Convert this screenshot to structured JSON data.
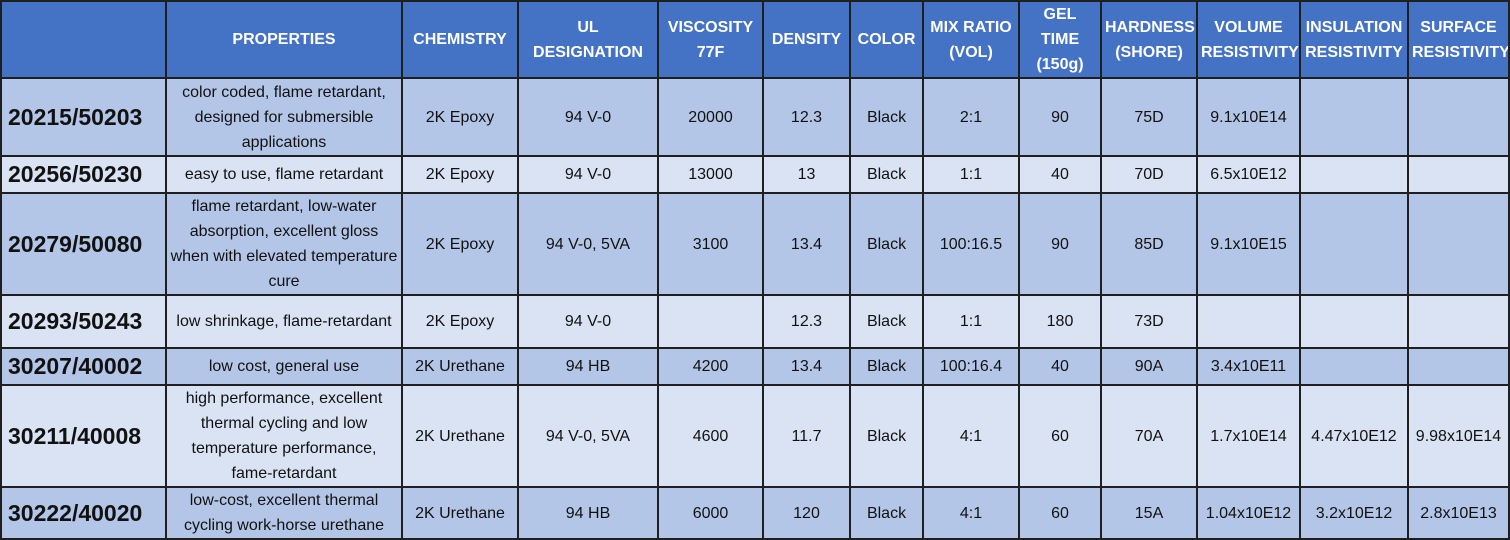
{
  "headers": [
    "",
    "PROPERTIES",
    "CHEMISTRY",
    "UL DESIGNATION",
    "VISCOSITY 77F",
    "DENSITY",
    "COLOR",
    "MIX RATIO (VOL)",
    "GEL TIME (150g)",
    "HARDNESS (SHORE)",
    "VOLUME RESISTIVITY",
    "INSULATION RESISTIVITY",
    "SURFACE RESISTIVITY"
  ],
  "rows": [
    [
      "20215/50203",
      "color coded, flame retardant, designed for submersible applications",
      "2K Epoxy",
      "94 V-0",
      "20000",
      "12.3",
      "Black",
      "2:1",
      "90",
      "75D",
      "9.1x10E14",
      "",
      ""
    ],
    [
      "20256/50230",
      "easy to use, flame retardant",
      "2K Epoxy",
      "94 V-0",
      "13000",
      "13",
      "Black",
      "1:1",
      "40",
      "70D",
      "6.5x10E12",
      "",
      ""
    ],
    [
      "20279/50080",
      "flame retardant, low-water absorption, excellent gloss when with elevated temperature cure",
      "2K Epoxy",
      "94 V-0, 5VA",
      "3100",
      "13.4",
      "Black",
      "100:16.5",
      "90",
      "85D",
      "9.1x10E15",
      "",
      ""
    ],
    [
      "20293/50243",
      "low shrinkage, flame-retardant",
      "2K Epoxy",
      "94 V-0",
      "",
      "12.3",
      "Black",
      "1:1",
      "180",
      "73D",
      "",
      "",
      ""
    ],
    [
      "30207/40002",
      "low cost, general use",
      "2K Urethane",
      "94 HB",
      "4200",
      "13.4",
      "Black",
      "100:16.4",
      "40",
      "90A",
      "3.4x10E11",
      "",
      ""
    ],
    [
      "30211/40008",
      "high performance, excellent thermal cycling and low temperature performance, fame-retardant",
      "2K Urethane",
      "94 V-0, 5VA",
      "4600",
      "11.7",
      "Black",
      "4:1",
      "60",
      "70A",
      "1.7x10E14",
      "4.47x10E12",
      "9.98x10E14"
    ],
    [
      "30222/40020",
      "low-cost, excellent thermal cycling work-horse urethane",
      "2K Urethane",
      "94 HB",
      "6000",
      "120",
      "Black",
      "4:1",
      "60",
      "15A",
      "1.04x10E12",
      "3.2x10E12",
      "2.8x10E13"
    ]
  ]
}
